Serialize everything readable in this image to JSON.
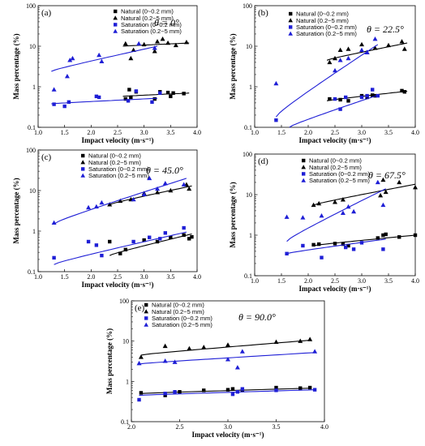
{
  "colors": {
    "natural": "#000000",
    "saturation": "#1f1fd6"
  },
  "legend": [
    {
      "label": "Natural (0~0.2 mm)",
      "marker": "square",
      "color": "#000000"
    },
    {
      "label": "Natural (0.2~5 mm)",
      "marker": "triangle",
      "color": "#000000"
    },
    {
      "label": "Saturation (0~0.2 mm)",
      "marker": "square",
      "color": "#1f1fd6"
    },
    {
      "label": "Saturation (0.2~5 mm)",
      "marker": "triangle",
      "color": "#1f1fd6"
    }
  ],
  "chart_data": [
    {
      "type": "scatter",
      "panel": "(a)",
      "angle_label": "θ = 0°",
      "xlabel": "Impact velocity (m·s⁻¹)",
      "ylabel": "Mass percentage (%)",
      "xlim": [
        1.0,
        4.0
      ],
      "ylim": [
        0.1,
        100
      ],
      "yscale": "log",
      "xticks": [
        1.0,
        1.5,
        2.0,
        2.5,
        3.0,
        3.5,
        4.0
      ],
      "yticks": [
        0.1,
        1,
        10,
        100
      ],
      "series": [
        {
          "name": "Natural (0~0.2 mm)",
          "marker": "square",
          "color": "#000000",
          "x": [
            2.65,
            2.72,
            2.75,
            2.85,
            3.2,
            3.3,
            3.45,
            3.5,
            3.55,
            3.75
          ],
          "y": [
            0.5,
            0.85,
            0.55,
            0.75,
            0.5,
            0.75,
            0.72,
            0.58,
            0.7,
            0.68
          ],
          "fit": [
            [
              2.6,
              0.58
            ],
            [
              3.85,
              0.7
            ]
          ]
        },
        {
          "name": "Natural (0.2~5 mm)",
          "marker": "triangle",
          "color": "#000000",
          "x": [
            2.65,
            2.75,
            2.8,
            3.0,
            3.2,
            3.25,
            3.35,
            3.45,
            3.6,
            3.8
          ],
          "y": [
            11.5,
            5.0,
            8.0,
            11.0,
            7.5,
            13.0,
            15.0,
            12.0,
            10.5,
            12.5
          ],
          "fit": [
            [
              2.6,
              10.0
            ],
            [
              3.85,
              12.0
            ]
          ]
        },
        {
          "name": "Saturation (0~0.2 mm)",
          "marker": "square",
          "color": "#1f1fd6",
          "x": [
            1.3,
            1.5,
            1.58,
            2.1,
            2.15,
            2.7,
            2.85,
            3.15,
            3.3
          ],
          "y": [
            0.37,
            0.33,
            0.42,
            0.58,
            0.55,
            0.45,
            0.78,
            0.42,
            0.7
          ],
          "fit": [
            [
              1.25,
              0.38
            ],
            [
              3.25,
              0.52
            ]
          ]
        },
        {
          "name": "Saturation (0.2~5 mm)",
          "marker": "triangle",
          "color": "#1f1fd6",
          "x": [
            1.3,
            1.55,
            1.6,
            1.65,
            2.15,
            2.2,
            2.9,
            3.2
          ],
          "y": [
            0.85,
            1.8,
            4.5,
            5.0,
            6.0,
            4.2,
            11.5,
            9.0
          ],
          "fit": [
            [
              1.25,
              2.4
            ],
            [
              3.25,
              10.0
            ]
          ]
        }
      ]
    },
    {
      "type": "scatter",
      "panel": "(b)",
      "angle_label": "θ = 22.5°",
      "xlabel": "Impact velocity (m·s⁻¹)",
      "ylabel": "Mass percentage (%)",
      "xlim": [
        1.0,
        4.0
      ],
      "ylim": [
        0.1,
        100
      ],
      "yscale": "log",
      "xticks": [
        1.0,
        1.5,
        2.0,
        2.5,
        3.0,
        3.5,
        4.0
      ],
      "yticks": [
        0.1,
        1,
        10,
        100
      ],
      "series": [
        {
          "name": "Natural (0~0.2 mm)",
          "marker": "square",
          "color": "#000000",
          "x": [
            2.4,
            2.6,
            2.75,
            3.0,
            3.1,
            3.2,
            3.25,
            3.75,
            3.8
          ],
          "y": [
            0.5,
            0.48,
            0.45,
            0.6,
            0.55,
            0.62,
            0.6,
            0.8,
            0.75
          ],
          "fit": [
            [
              2.35,
              0.45
            ],
            [
              3.85,
              0.78
            ]
          ]
        },
        {
          "name": "Natural (0.2~5 mm)",
          "marker": "triangle",
          "color": "#000000",
          "x": [
            2.4,
            2.5,
            2.6,
            2.75,
            3.0,
            3.1,
            3.25,
            3.5,
            3.75,
            3.8
          ],
          "y": [
            4.0,
            5.0,
            8.0,
            8.5,
            11.0,
            7.0,
            9.0,
            10.5,
            13.0,
            8.5
          ],
          "fit": [
            [
              2.35,
              4.5
            ],
            [
              3.85,
              12.0
            ]
          ]
        },
        {
          "name": "Saturation (0~0.2 mm)",
          "marker": "square",
          "color": "#1f1fd6",
          "x": [
            1.4,
            2.5,
            2.6,
            2.7,
            3.0,
            3.1,
            3.2,
            3.3
          ],
          "y": [
            0.15,
            0.5,
            0.28,
            0.55,
            0.55,
            0.6,
            0.85,
            0.6
          ],
          "fit": [
            [
              1.65,
              0.1
            ],
            [
              3.3,
              0.62
            ]
          ]
        },
        {
          "name": "Saturation (0.2~5 mm)",
          "marker": "triangle",
          "color": "#1f1fd6",
          "x": [
            1.4,
            2.5,
            2.6,
            2.75,
            3.0,
            3.1,
            3.25
          ],
          "y": [
            1.2,
            2.5,
            4.5,
            5.0,
            8.0,
            7.0,
            15.0
          ],
          "fit": [
            [
              1.4,
              0.18
            ],
            [
              3.3,
              11.0
            ]
          ]
        }
      ]
    },
    {
      "type": "scatter",
      "panel": "(c)",
      "angle_label": "θ = 45.0°",
      "xlabel": "Impact velocity (m·s⁻¹)",
      "ylabel": "Mass percentage (%)",
      "xlim": [
        1.0,
        4.0
      ],
      "ylim": [
        0.1,
        100
      ],
      "yscale": "log",
      "xticks": [
        1.0,
        1.5,
        2.0,
        2.5,
        3.0,
        3.5,
        4.0
      ],
      "yticks": [
        0.1,
        1,
        10,
        100
      ],
      "series": [
        {
          "name": "Natural (0~0.2 mm)",
          "marker": "square",
          "color": "#000000",
          "x": [
            2.35,
            2.55,
            2.65,
            3.0,
            3.25,
            3.5,
            3.75,
            3.85,
            3.9
          ],
          "y": [
            0.55,
            0.28,
            0.35,
            0.6,
            0.55,
            0.7,
            0.8,
            0.65,
            0.72
          ],
          "fit": [
            [
              2.35,
              0.25
            ],
            [
              3.9,
              0.85
            ]
          ]
        },
        {
          "name": "Natural (0.2~5 mm)",
          "marker": "triangle",
          "color": "#000000",
          "x": [
            2.35,
            2.55,
            2.75,
            3.0,
            3.25,
            3.5,
            3.8,
            3.85
          ],
          "y": [
            4.5,
            5.5,
            6.0,
            8.5,
            9.0,
            10.0,
            14.0,
            11.0
          ],
          "fit": [
            [
              2.35,
              4.5
            ],
            [
              3.9,
              13.0
            ]
          ]
        },
        {
          "name": "Saturation (0~0.2 mm)",
          "marker": "square",
          "color": "#1f1fd6",
          "x": [
            1.3,
            1.95,
            2.1,
            2.2,
            2.8,
            3.1,
            3.3,
            3.4,
            3.75
          ],
          "y": [
            0.22,
            0.55,
            0.45,
            0.25,
            0.55,
            0.7,
            0.65,
            0.9,
            1.2
          ],
          "fit": [
            [
              1.3,
              0.15
            ],
            [
              3.8,
              0.95
            ]
          ]
        },
        {
          "name": "Saturation (0.2~5 mm)",
          "marker": "triangle",
          "color": "#1f1fd6",
          "x": [
            1.3,
            1.95,
            2.1,
            2.2,
            2.8,
            3.0,
            3.1,
            3.25,
            3.4,
            3.75
          ],
          "y": [
            1.6,
            3.8,
            4.0,
            5.0,
            6.0,
            8.0,
            20.0,
            11.0,
            15.0,
            14.0
          ],
          "fit": [
            [
              1.3,
              1.5
            ],
            [
              3.8,
              20.0
            ]
          ]
        }
      ]
    },
    {
      "type": "scatter",
      "panel": "(d)",
      "angle_label": "θ = 67.5°",
      "xlabel": "Impact velocity (m·s⁻¹)",
      "ylabel": "Mass percentage (%)",
      "xlim": [
        1.0,
        4.0
      ],
      "ylim": [
        0.1,
        100
      ],
      "yscale": "log",
      "xticks": [
        1.0,
        1.5,
        2.0,
        2.5,
        3.0,
        3.5,
        4.0
      ],
      "yticks": [
        0.1,
        1,
        10,
        100
      ],
      "series": [
        {
          "name": "Natural (0~0.2 mm)",
          "marker": "square",
          "color": "#000000",
          "x": [
            2.1,
            2.2,
            2.5,
            2.65,
            2.75,
            3.3,
            3.4,
            3.45,
            3.7,
            4.0
          ],
          "y": [
            0.58,
            0.6,
            0.62,
            0.6,
            0.55,
            0.85,
            1.0,
            1.05,
            0.9,
            1.0
          ],
          "fit": [
            [
              2.1,
              0.55
            ],
            [
              4.0,
              1.0
            ]
          ]
        },
        {
          "name": "Natural (0.2~5 mm)",
          "marker": "triangle",
          "color": "#000000",
          "x": [
            2.1,
            2.2,
            2.5,
            2.65,
            3.35,
            3.4,
            3.45,
            3.7,
            4.0
          ],
          "y": [
            5.5,
            6.0,
            6.5,
            7.5,
            9.5,
            23.0,
            11.5,
            20.0,
            15.0
          ],
          "fit": [
            [
              2.1,
              5.5
            ],
            [
              4.0,
              18.0
            ]
          ]
        },
        {
          "name": "Saturation (0~0.2 mm)",
          "marker": "square",
          "color": "#1f1fd6",
          "x": [
            1.6,
            1.9,
            2.25,
            2.7,
            2.85,
            3.0,
            3.4
          ],
          "y": [
            0.35,
            0.55,
            0.28,
            0.5,
            0.45,
            0.65,
            0.45
          ],
          "fit": [
            [
              1.6,
              0.35
            ],
            [
              3.45,
              0.8
            ]
          ]
        },
        {
          "name": "Saturation (0.2~5 mm)",
          "marker": "triangle",
          "color": "#1f1fd6",
          "x": [
            1.6,
            1.9,
            2.25,
            2.65,
            2.75,
            2.85,
            3.3,
            3.4
          ],
          "y": [
            2.8,
            2.7,
            3.0,
            3.5,
            5.0,
            3.8,
            20.0,
            5.5
          ],
          "fit": [
            [
              1.6,
              0.7
            ],
            [
              3.45,
              14.0
            ]
          ]
        }
      ]
    },
    {
      "type": "scatter",
      "panel": "(e)",
      "angle_label": "θ = 90.0°",
      "xlabel": "Impact velocity (m·s⁻¹)",
      "ylabel": "Mass percentage (%)",
      "xlim": [
        2.0,
        4.0
      ],
      "ylim": [
        0.1,
        100
      ],
      "yscale": "log",
      "xticks": [
        2.0,
        2.5,
        3.0,
        3.5,
        4.0
      ],
      "yticks": [
        0.1,
        1,
        10,
        100
      ],
      "series": [
        {
          "name": "Natural (0~0.2 mm)",
          "marker": "square",
          "color": "#000000",
          "x": [
            2.1,
            2.35,
            2.5,
            2.75,
            3.0,
            3.05,
            3.15,
            3.5,
            3.75,
            3.85
          ],
          "y": [
            0.52,
            0.45,
            0.55,
            0.6,
            0.62,
            0.65,
            0.6,
            0.7,
            0.68,
            0.7
          ],
          "fit": [
            [
              2.1,
              0.5
            ],
            [
              3.85,
              0.68
            ]
          ]
        },
        {
          "name": "Natural (0.2~5 mm)",
          "marker": "triangle",
          "color": "#000000",
          "x": [
            2.1,
            2.35,
            2.6,
            2.75,
            3.0,
            3.5,
            3.75,
            3.85
          ],
          "y": [
            4.0,
            7.5,
            6.5,
            7.0,
            8.0,
            9.5,
            10.0,
            11.0
          ],
          "fit": [
            [
              2.1,
              4.5
            ],
            [
              3.85,
              10.5
            ]
          ]
        },
        {
          "name": "Saturation (0~0.2 mm)",
          "marker": "square",
          "color": "#1f1fd6",
          "x": [
            2.08,
            2.35,
            2.45,
            3.05,
            3.1,
            3.15,
            3.5,
            3.9
          ],
          "y": [
            0.35,
            0.5,
            0.55,
            0.48,
            0.55,
            0.65,
            0.6,
            0.62
          ],
          "fit": [
            [
              2.08,
              0.45
            ],
            [
              3.9,
              0.62
            ]
          ]
        },
        {
          "name": "Saturation (0.2~5 mm)",
          "marker": "triangle",
          "color": "#1f1fd6",
          "x": [
            2.08,
            2.35,
            2.45,
            3.0,
            3.1,
            3.15,
            3.9
          ],
          "y": [
            2.8,
            3.2,
            3.0,
            3.5,
            2.2,
            5.5,
            5.5
          ],
          "fit": [
            [
              2.08,
              2.7
            ],
            [
              3.9,
              5.2
            ]
          ]
        }
      ]
    }
  ]
}
